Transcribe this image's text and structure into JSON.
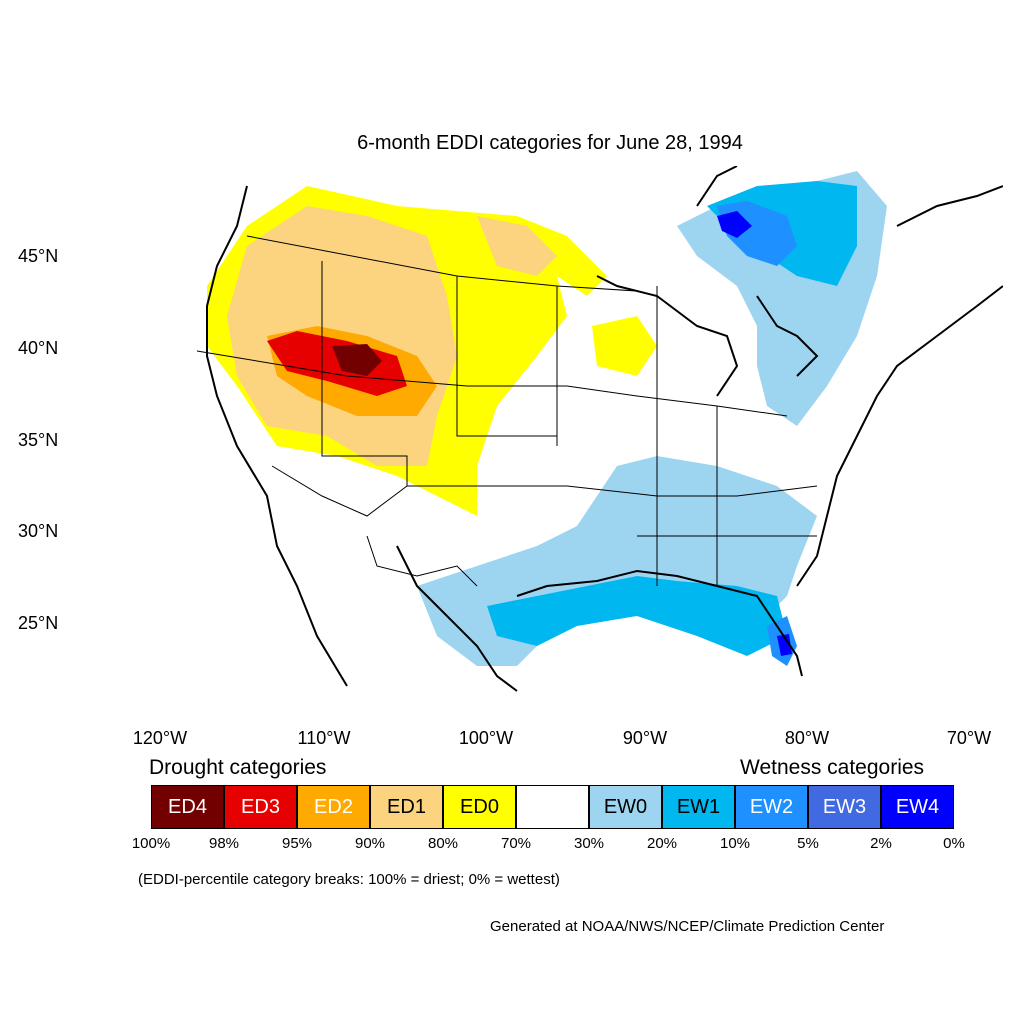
{
  "title": "6-month EDDI categories for June 28, 1994",
  "lat_labels": [
    "45°N",
    "40°N",
    "35°N",
    "30°N",
    "25°N"
  ],
  "lon_labels": [
    "120°W",
    "110°W",
    "100°W",
    "90°W",
    "80°W",
    "70°W"
  ],
  "legend": {
    "drought_label": "Drought categories",
    "wetness_label": "Wetness categories",
    "categories": [
      {
        "label": "ED4",
        "color": "#730000",
        "text_color": "#ffffff"
      },
      {
        "label": "ED3",
        "color": "#e60000",
        "text_color": "#ffffff"
      },
      {
        "label": "ED2",
        "color": "#ffaa00",
        "text_color": "#ffffff"
      },
      {
        "label": "ED1",
        "color": "#fcd37f",
        "text_color": "#000000"
      },
      {
        "label": "ED0",
        "color": "#ffff00",
        "text_color": "#000000"
      },
      {
        "label": "",
        "color": "#ffffff",
        "text_color": "#000000"
      },
      {
        "label": "EW0",
        "color": "#9dd5f0",
        "text_color": "#000000"
      },
      {
        "label": "EW1",
        "color": "#00b7ef",
        "text_color": "#000000"
      },
      {
        "label": "EW2",
        "color": "#1e90ff",
        "text_color": "#ffffff"
      },
      {
        "label": "EW3",
        "color": "#4169e1",
        "text_color": "#ffffff"
      },
      {
        "label": "EW4",
        "color": "#0000ff",
        "text_color": "#ffffff"
      }
    ],
    "percentiles": [
      "100%",
      "98%",
      "95%",
      "90%",
      "80%",
      "70%",
      "30%",
      "20%",
      "10%",
      "5%",
      "2%",
      "0%"
    ]
  },
  "breaks_note": "(EDDI-percentile category breaks: 100% = driest; 0% = wettest)",
  "credit": "Generated at NOAA/NWS/NCEP/Climate Prediction Center"
}
